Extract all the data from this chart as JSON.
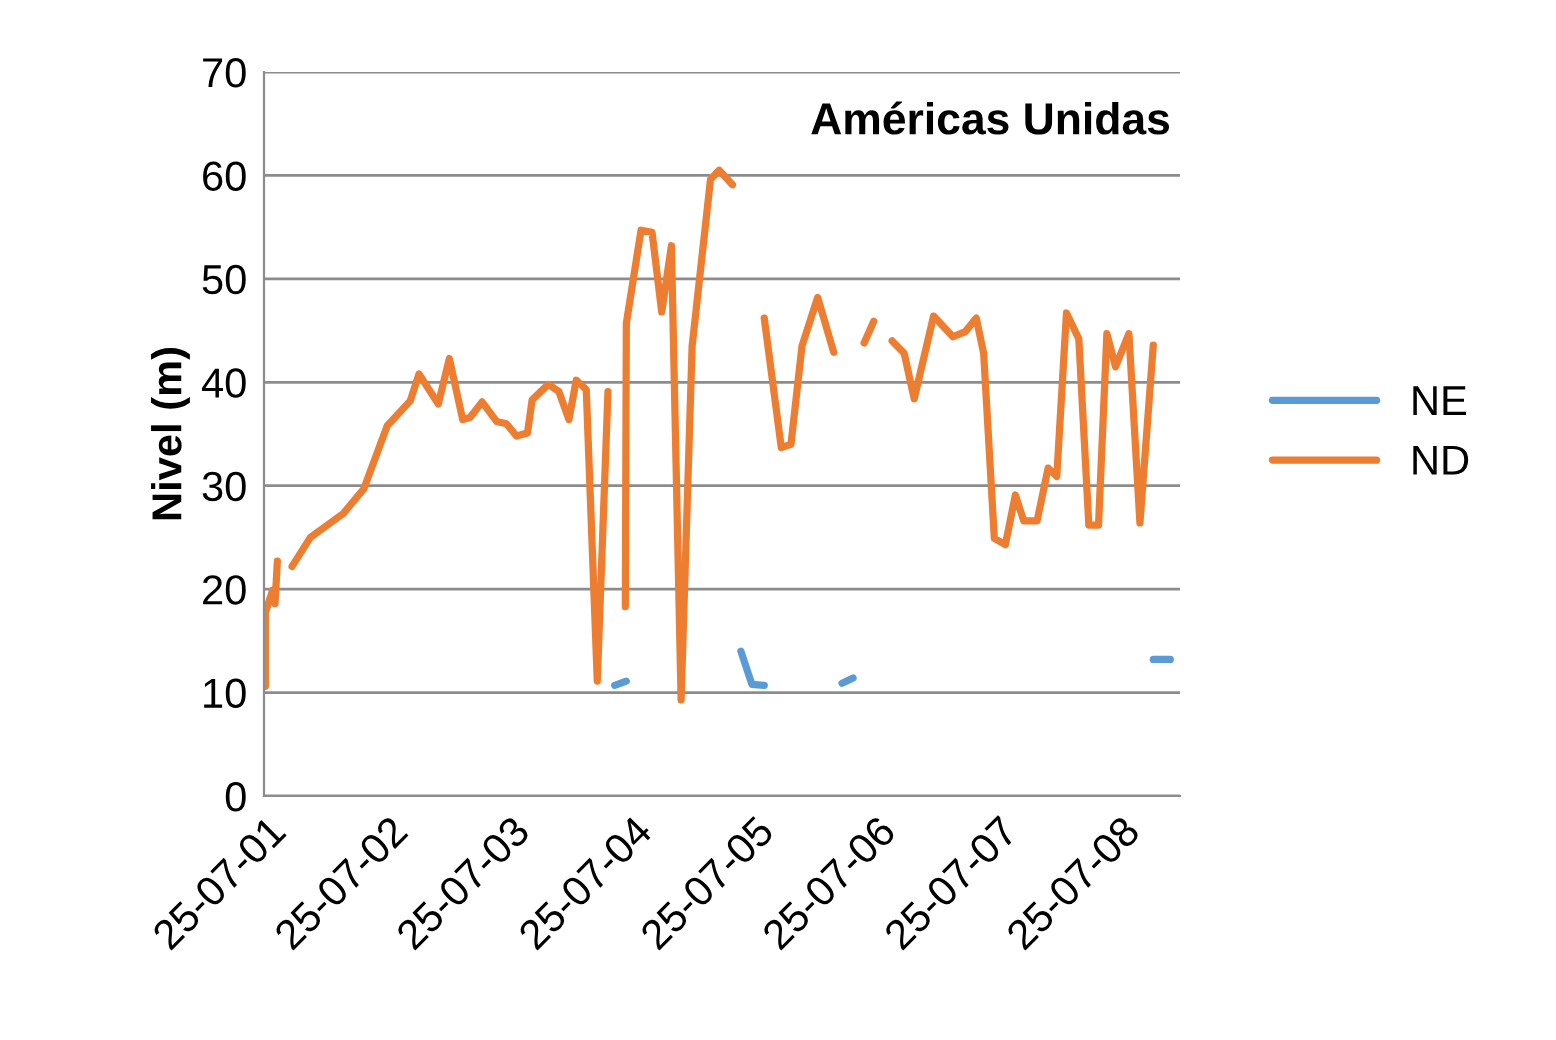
{
  "chart_data": {
    "type": "line",
    "title": "Américas Unidas",
    "ylabel": "Nivel (m)",
    "xlim": [
      "2001-07-17",
      "2009-01-19"
    ],
    "xticks": [
      {
        "value": "2001-07-25",
        "label": "25-07-01"
      },
      {
        "value": "2002-07-25",
        "label": "25-07-02"
      },
      {
        "value": "2003-07-25",
        "label": "25-07-03"
      },
      {
        "value": "2004-07-25",
        "label": "25-07-04"
      },
      {
        "value": "2005-07-25",
        "label": "25-07-05"
      },
      {
        "value": "2006-07-25",
        "label": "25-07-06"
      },
      {
        "value": "2007-07-25",
        "label": "25-07-07"
      },
      {
        "value": "2008-07-25",
        "label": "25-07-08"
      }
    ],
    "ylim": [
      0,
      70
    ],
    "yticks": [
      0,
      10,
      20,
      30,
      40,
      50,
      60,
      70
    ],
    "grid": "y",
    "legend": "right",
    "marker": "none",
    "line_style": "solid",
    "series": [
      {
        "name": "NE",
        "color": "#5b9bd5",
        "x": [
          "2004-06-01",
          "2004-07-06",
          "2004-07-08",
          "2005-06-14",
          "2005-07-17",
          "2005-08-23",
          "2005-08-26",
          "2006-04-13",
          "2006-05-16",
          "2006-05-20",
          "2008-10-31",
          "2008-12-21"
        ],
        "values": [
          10.7,
          11.1,
          null,
          14.0,
          10.8,
          10.7,
          null,
          10.9,
          11.4,
          null,
          13.2,
          13.2
        ]
      },
      {
        "name": "ND",
        "color": "#ed7d31",
        "x": [
          "2001-07-21",
          "2001-07-21",
          "2001-08-12",
          "2001-08-19",
          "2001-08-26",
          "2001-09-14",
          "2001-10-09",
          "2001-12-03",
          "2002-03-11",
          "2002-05-12",
          "2002-07-21",
          "2002-09-28",
          "2002-10-24",
          "2002-12-21",
          "2003-01-23",
          "2003-03-04",
          "2003-03-26",
          "2003-05-01",
          "2003-06-14",
          "2003-07-13",
          "2003-08-12",
          "2003-09-14",
          "2003-09-28",
          "2003-11-15",
          "2003-12-17",
          "2004-01-16",
          "2004-02-07",
          "2004-03-08",
          "2004-04-10",
          "2004-05-12",
          "2004-06-07",
          "2004-07-03",
          "2004-07-06",
          "2004-08-19",
          "2004-09-21",
          "2004-10-20",
          "2004-11-18",
          "2004-12-17",
          "2005-01-19",
          "2005-03-15",
          "2005-04-10",
          "2005-05-20",
          "2005-07-03",
          "2005-08-23",
          "2005-10-13",
          "2005-11-11",
          "2005-12-14",
          "2006-01-30",
          "2006-03-19",
          "2006-05-09",
          "2006-06-18",
          "2006-07-17",
          "2006-08-08",
          "2006-09-10",
          "2006-10-16",
          "2006-11-15",
          "2007-01-12",
          "2007-03-11",
          "2007-04-17",
          "2007-05-20",
          "2007-06-11",
          "2007-07-13",
          "2007-08-15",
          "2007-09-14",
          "2007-10-09",
          "2007-11-18",
          "2007-12-21",
          "2008-01-16",
          "2008-02-14",
          "2008-03-22",
          "2008-04-21",
          "2008-05-20",
          "2008-06-14",
          "2008-07-10",
          "2008-08-19",
          "2008-09-21",
          "2008-10-31"
        ],
        "values": [
          10.6,
          17.7,
          19.9,
          18.6,
          22.7,
          null,
          22.2,
          25.0,
          27.3,
          29.7,
          35.8,
          38.2,
          40.8,
          37.9,
          42.3,
          36.4,
          36.6,
          38.1,
          36.2,
          36.0,
          34.8,
          35.1,
          38.3,
          39.8,
          39.1,
          36.4,
          40.2,
          39.3,
          11.1,
          39.1,
          null,
          18.3,
          45.7,
          54.7,
          54.5,
          46.8,
          53.2,
          9.3,
          43.5,
          59.6,
          60.5,
          59.1,
          null,
          46.2,
          33.7,
          34.0,
          43.5,
          48.2,
          42.9,
          null,
          43.8,
          45.9,
          null,
          44.0,
          42.8,
          38.4,
          46.4,
          44.4,
          44.9,
          46.2,
          42.8,
          24.9,
          24.3,
          29.1,
          26.6,
          26.6,
          31.7,
          30.9,
          46.7,
          44.2,
          26.2,
          26.2,
          44.7,
          41.5,
          44.7,
          26.4,
          43.6
        ]
      }
    ]
  }
}
